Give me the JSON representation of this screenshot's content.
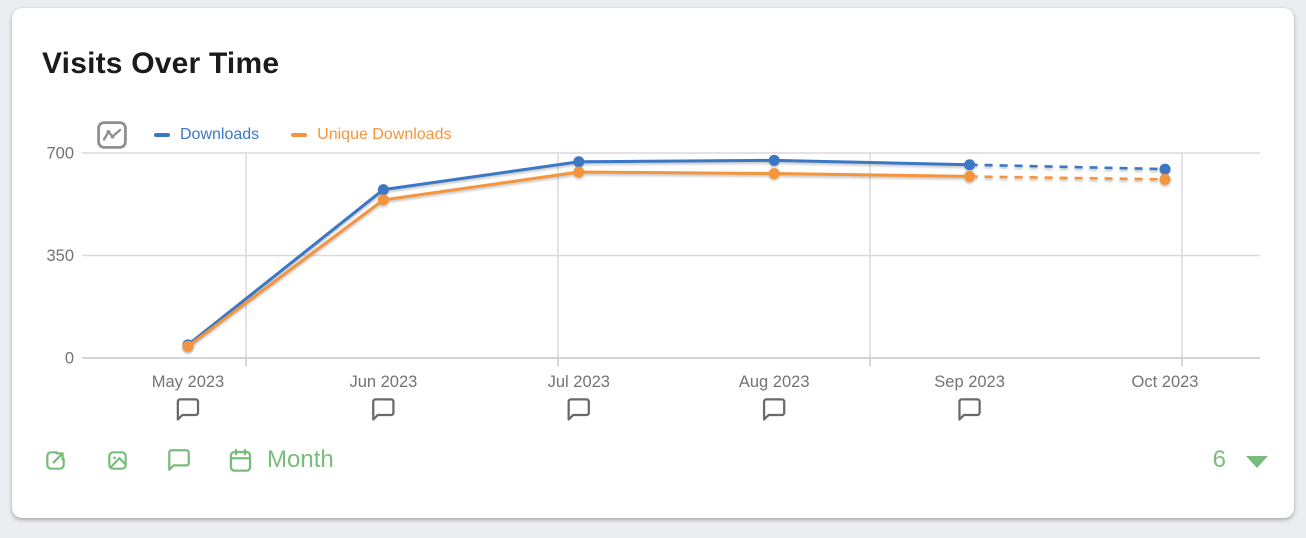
{
  "title": "Visits Over Time",
  "legend": {
    "chart_type_icon": "line-chart-icon",
    "items": [
      {
        "label": "Downloads",
        "color": "#3b77c5"
      },
      {
        "label": "Unique Downloads",
        "color": "#f4953d"
      }
    ]
  },
  "chart_data": {
    "type": "line",
    "title": "Visits Over Time",
    "x": [
      "May 2023",
      "Jun 2023",
      "Jul 2023",
      "Aug 2023",
      "Sep 2023",
      "Oct 2023"
    ],
    "series": [
      {
        "name": "Downloads",
        "color": "#3b77c5",
        "values": [
          45,
          575,
          670,
          675,
          660,
          645
        ],
        "dashed_from_index": 4
      },
      {
        "name": "Unique Downloads",
        "color": "#f4953d",
        "values": [
          40,
          540,
          635,
          630,
          620,
          610
        ],
        "dashed_from_index": 4
      }
    ],
    "ylim": [
      0,
      700
    ],
    "yticks": [
      0,
      350,
      700
    ],
    "grid": true,
    "legend_position": "top-left",
    "xlabel": "",
    "ylabel": "",
    "comment_markers": [
      true,
      true,
      true,
      true,
      true,
      false
    ]
  },
  "toolbar": {
    "accent": "#7bbc7d",
    "icons": [
      "share-icon",
      "image-icon",
      "comment-icon",
      "calendar-icon"
    ],
    "granularity_label": "Month",
    "points_count": "6"
  }
}
